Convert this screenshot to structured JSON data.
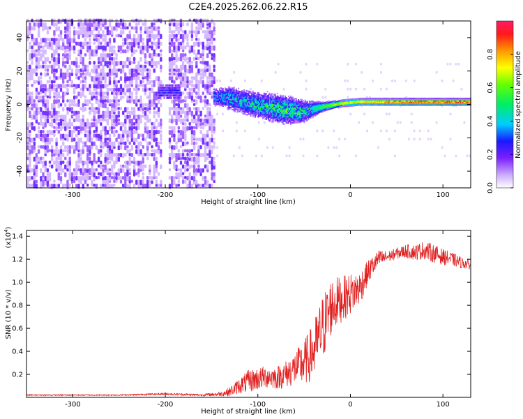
{
  "chart_data": [
    {
      "type": "heatmap",
      "title": "C2E4.2025.262.06.22.R15",
      "xlabel": "Height of straight line (km)",
      "ylabel": "Frequency (Hz)",
      "xlim": [
        -350,
        130
      ],
      "ylim": [
        -50,
        50
      ],
      "x_ticks": [
        -300,
        -200,
        -100,
        0,
        100
      ],
      "x_tick_labels": [
        "-300",
        "-200",
        "-100",
        "0",
        "100"
      ],
      "y_ticks": [
        -40,
        -20,
        0,
        20,
        40
      ],
      "y_tick_labels": [
        "-40",
        "-20",
        "0",
        "20",
        "40"
      ],
      "colorbar": {
        "label": "Normalized spectral amplitude",
        "range": [
          0.0,
          1.0
        ],
        "ticks": [
          0.0,
          0.2,
          0.4,
          0.6,
          0.8
        ],
        "tick_labels": [
          "0.0",
          "0.2",
          "0.4",
          "0.6",
          "0.8"
        ]
      },
      "regions": [
        {
          "name": "noise",
          "x_range": [
            -350,
            -148
          ],
          "freq_range": [
            -50,
            50
          ],
          "amplitude": 0.05
        },
        {
          "name": "noise-gap",
          "x_range": [
            -205,
            -198
          ],
          "freq_range": [
            -50,
            50
          ],
          "amplitude": 0.01
        },
        {
          "name": "early-blob",
          "x_range": [
            -208,
            -185
          ],
          "freq_center": 8,
          "amplitude": 0.3
        },
        {
          "name": "broad-signal",
          "x_range": [
            -148,
            -40
          ],
          "freq_center": 2,
          "amplitude": 0.35
        },
        {
          "name": "narrow-carrier",
          "x_range": [
            -40,
            130
          ],
          "freq_center": 2,
          "amplitude": 0.85
        }
      ],
      "carrier_ridge": {
        "x": [
          -148,
          -130,
          -110,
          -90,
          -70,
          -55,
          -45,
          -30,
          -10,
          10,
          40,
          70,
          100,
          130
        ],
        "freq": [
          5,
          4,
          1,
          -1,
          -3,
          -4,
          -3,
          -1,
          1,
          2,
          2,
          2,
          2,
          2
        ],
        "width": [
          6,
          8,
          8,
          9,
          9,
          8,
          6,
          3,
          2,
          2,
          2,
          2,
          2,
          2
        ],
        "amplitude": [
          0.3,
          0.35,
          0.4,
          0.45,
          0.5,
          0.45,
          0.4,
          0.6,
          0.75,
          0.8,
          0.9,
          0.95,
          0.95,
          0.95
        ]
      }
    },
    {
      "type": "line",
      "xlabel": "Height of straight line (km)",
      "ylabel": "SNR (10 * v/v)",
      "y_scale_label": "(x10",
      "y_scale_exponent": "4",
      "y_scale_suffix": ")",
      "xlim": [
        -350,
        130
      ],
      "ylim": [
        0,
        1.45
      ],
      "x_ticks": [
        -300,
        -200,
        -100,
        0,
        100
      ],
      "x_tick_labels": [
        "-300",
        "-200",
        "-100",
        "0",
        "100"
      ],
      "y_ticks": [
        0.2,
        0.4,
        0.6,
        0.8,
        1.0,
        1.2,
        1.4
      ],
      "y_tick_labels": [
        "0.2",
        "0.4",
        "0.6",
        "0.8",
        "1.0",
        "1.2",
        "1.4"
      ],
      "series": [
        {
          "name": "SNR",
          "color": "#e02020",
          "x": [
            -350,
            -300,
            -250,
            -200,
            -160,
            -140,
            -130,
            -120,
            -110,
            -100,
            -90,
            -80,
            -70,
            -60,
            -50,
            -40,
            -30,
            -20,
            -10,
            0,
            10,
            20,
            30,
            40,
            50,
            60,
            70,
            80,
            90,
            100,
            110,
            120,
            130
          ],
          "y": [
            0.02,
            0.02,
            0.02,
            0.03,
            0.02,
            0.03,
            0.05,
            0.1,
            0.14,
            0.16,
            0.18,
            0.17,
            0.2,
            0.25,
            0.3,
            0.4,
            0.6,
            0.8,
            0.85,
            0.9,
            0.95,
            1.1,
            1.2,
            1.22,
            1.25,
            1.27,
            1.26,
            1.28,
            1.25,
            1.22,
            1.2,
            1.17,
            1.15
          ],
          "noise": [
            0.005,
            0.005,
            0.005,
            0.01,
            0.008,
            0.02,
            0.04,
            0.07,
            0.1,
            0.1,
            0.1,
            0.1,
            0.12,
            0.15,
            0.2,
            0.25,
            0.3,
            0.25,
            0.2,
            0.18,
            0.15,
            0.1,
            0.08,
            0.05,
            0.05,
            0.06,
            0.07,
            0.08,
            0.08,
            0.07,
            0.06,
            0.05,
            0.04
          ]
        }
      ]
    }
  ]
}
